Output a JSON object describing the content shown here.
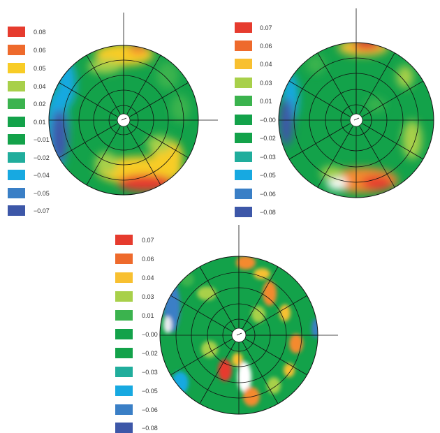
{
  "colors": {
    "red": "#e63b2e",
    "red_orange": "#ee6a2c",
    "orange": "#f48a2e",
    "yellow": "#f8cc26",
    "yellow_green": "#a8d04a",
    "light_green": "#3bb34e",
    "green": "#13a24a",
    "teal": "#20ad9c",
    "cyan": "#17a9e1",
    "mid_blue": "#3a7fc6",
    "blue": "#3d57a8",
    "background": "#ffffff",
    "grid": "#111111"
  },
  "maps": [
    {
      "legend": [
        {
          "label": "0.08",
          "color": "#e63b2e"
        },
        {
          "label": "0.06",
          "color": "#ee6a2c"
        },
        {
          "label": "0.05",
          "color": "#f8cc26"
        },
        {
          "label": "0.04",
          "color": "#a8d04a"
        },
        {
          "label": "0.02",
          "color": "#3bb34e"
        },
        {
          "label": "0.01",
          "color": "#13a24a"
        },
        {
          "label": "−0.01",
          "color": "#13a24a"
        },
        {
          "label": "−0.02",
          "color": "#20ad9c"
        },
        {
          "label": "−0.04",
          "color": "#17a9e1"
        },
        {
          "label": "−0.05",
          "color": "#3a7fc6"
        },
        {
          "label": "−0.07",
          "color": "#3d57a8"
        }
      ]
    },
    {
      "legend": [
        {
          "label": "0.07",
          "color": "#e63b2e"
        },
        {
          "label": "0.06",
          "color": "#ee6a2c"
        },
        {
          "label": "0.04",
          "color": "#f8c030"
        },
        {
          "label": "0.03",
          "color": "#a8d04a"
        },
        {
          "label": "0.01",
          "color": "#3bb34e"
        },
        {
          "label": "−0.00",
          "color": "#13a24a"
        },
        {
          "label": "−0.02",
          "color": "#13a24a"
        },
        {
          "label": "−0.03",
          "color": "#20ad9c"
        },
        {
          "label": "−0.05",
          "color": "#17a9e1"
        },
        {
          "label": "−0.06",
          "color": "#3a7fc6"
        },
        {
          "label": "−0.08",
          "color": "#3d57a8"
        }
      ]
    },
    {
      "legend": [
        {
          "label": "0.07",
          "color": "#e63b2e"
        },
        {
          "label": "0.06",
          "color": "#ee6a2c"
        },
        {
          "label": "0.04",
          "color": "#f8c030"
        },
        {
          "label": "0.03",
          "color": "#a8d04a"
        },
        {
          "label": "0.01",
          "color": "#3bb34e"
        },
        {
          "label": "−0.00",
          "color": "#13a24a"
        },
        {
          "label": "−0.02",
          "color": "#13a24a"
        },
        {
          "label": "−0.03",
          "color": "#20ad9c"
        },
        {
          "label": "−0.05",
          "color": "#17a9e1"
        },
        {
          "label": "−0.06",
          "color": "#3a7fc6"
        },
        {
          "label": "−0.08",
          "color": "#3d57a8"
        }
      ]
    }
  ]
}
